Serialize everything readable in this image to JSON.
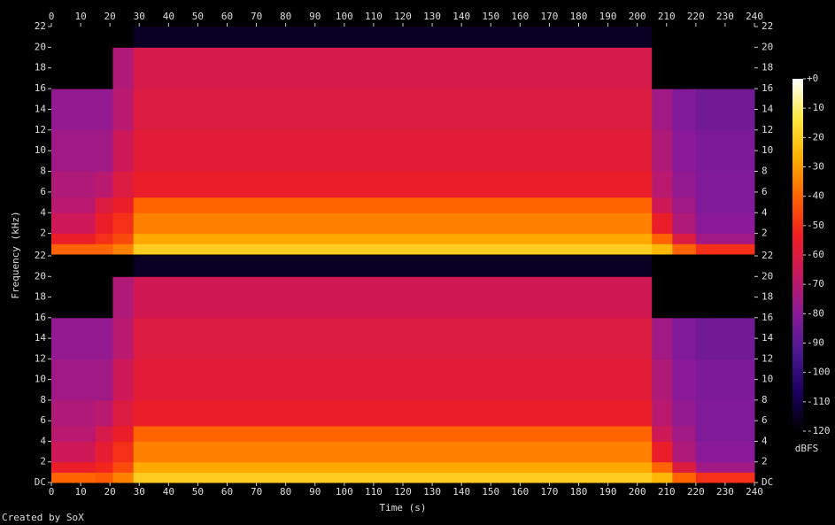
{
  "chart_data": [
    {
      "type": "heatmap",
      "ylabel": "Frequency (kHz)",
      "x_bins": [
        0,
        15,
        21,
        28,
        205,
        212,
        220,
        240
      ],
      "y_bins": [
        0,
        1,
        2,
        4,
        5.5,
        8,
        12,
        16,
        20,
        22
      ],
      "values": [
        [
          -40,
          -55,
          -65,
          -70,
          -72,
          -75,
          -78,
          -125,
          -125
        ],
        [
          -40,
          -50,
          -55,
          -60,
          -70,
          -75,
          -78,
          -125,
          -125
        ],
        [
          -35,
          -45,
          -50,
          -55,
          -60,
          -65,
          -70,
          -72,
          -125
        ],
        [
          -20,
          -28,
          -35,
          -40,
          -55,
          -58,
          -60,
          -62,
          -115
        ],
        [
          -25,
          -40,
          -55,
          -65,
          -70,
          -72,
          -75,
          -125,
          -125
        ],
        [
          -40,
          -60,
          -72,
          -75,
          -78,
          -80,
          -82,
          -125,
          -125
        ],
        [
          -50,
          -75,
          -80,
          -82,
          -82,
          -83,
          -85,
          -125,
          -125
        ]
      ],
      "xlim": [
        0,
        240
      ],
      "xticks": [
        0,
        10,
        20,
        30,
        40,
        50,
        60,
        70,
        80,
        90,
        100,
        110,
        120,
        130,
        140,
        150,
        160,
        170,
        180,
        190,
        200,
        210,
        220,
        230,
        240
      ],
      "ylim": [
        0,
        22
      ],
      "yticks": [
        2,
        4,
        6,
        8,
        10,
        12,
        14,
        16,
        18,
        20,
        22
      ]
    },
    {
      "type": "heatmap",
      "xlabel": "Time (s)",
      "x_bins": [
        0,
        15,
        21,
        28,
        205,
        212,
        220,
        240
      ],
      "y_bins": [
        0,
        1,
        2,
        4,
        5.5,
        8,
        12,
        16,
        20,
        22
      ],
      "values": [
        [
          -40,
          -55,
          -65,
          -70,
          -72,
          -75,
          -78,
          -125,
          -125
        ],
        [
          -42,
          -52,
          -57,
          -62,
          -70,
          -75,
          -78,
          -125,
          -125
        ],
        [
          -35,
          -45,
          -50,
          -55,
          -60,
          -65,
          -70,
          -72,
          -125
        ],
        [
          -20,
          -28,
          -35,
          -40,
          -55,
          -58,
          -60,
          -64,
          -115
        ],
        [
          -25,
          -40,
          -55,
          -65,
          -70,
          -72,
          -75,
          -125,
          -125
        ],
        [
          -40,
          -60,
          -72,
          -75,
          -78,
          -80,
          -82,
          -125,
          -125
        ],
        [
          -50,
          -75,
          -80,
          -82,
          -82,
          -83,
          -85,
          -125,
          -125
        ]
      ],
      "xlim": [
        0,
        240
      ],
      "xticks": [
        0,
        10,
        20,
        30,
        40,
        50,
        60,
        70,
        80,
        90,
        100,
        110,
        120,
        130,
        140,
        150,
        160,
        170,
        180,
        190,
        200,
        210,
        220,
        230,
        240
      ],
      "ylim": [
        0,
        22
      ],
      "yticks": [
        {
          "value": 0,
          "label": "DC"
        },
        2,
        4,
        6,
        8,
        10,
        12,
        14,
        16,
        18,
        20,
        22
      ]
    }
  ],
  "colorbar": {
    "label": "dBFS",
    "lim": [
      -120,
      0
    ],
    "colormap": [
      "#000000",
      "#1a0060",
      "#4a1890",
      "#8a1a9a",
      "#c81860",
      "#f01e20",
      "#ff6400",
      "#ffb000",
      "#ffe840",
      "#ffffff"
    ],
    "ticks": [
      {
        "value": 0,
        "label": "+0"
      },
      -10,
      -20,
      -30,
      -40,
      -50,
      -60,
      -70,
      -80,
      -90,
      -100,
      -110,
      -120
    ]
  },
  "credit": "Created by SoX"
}
